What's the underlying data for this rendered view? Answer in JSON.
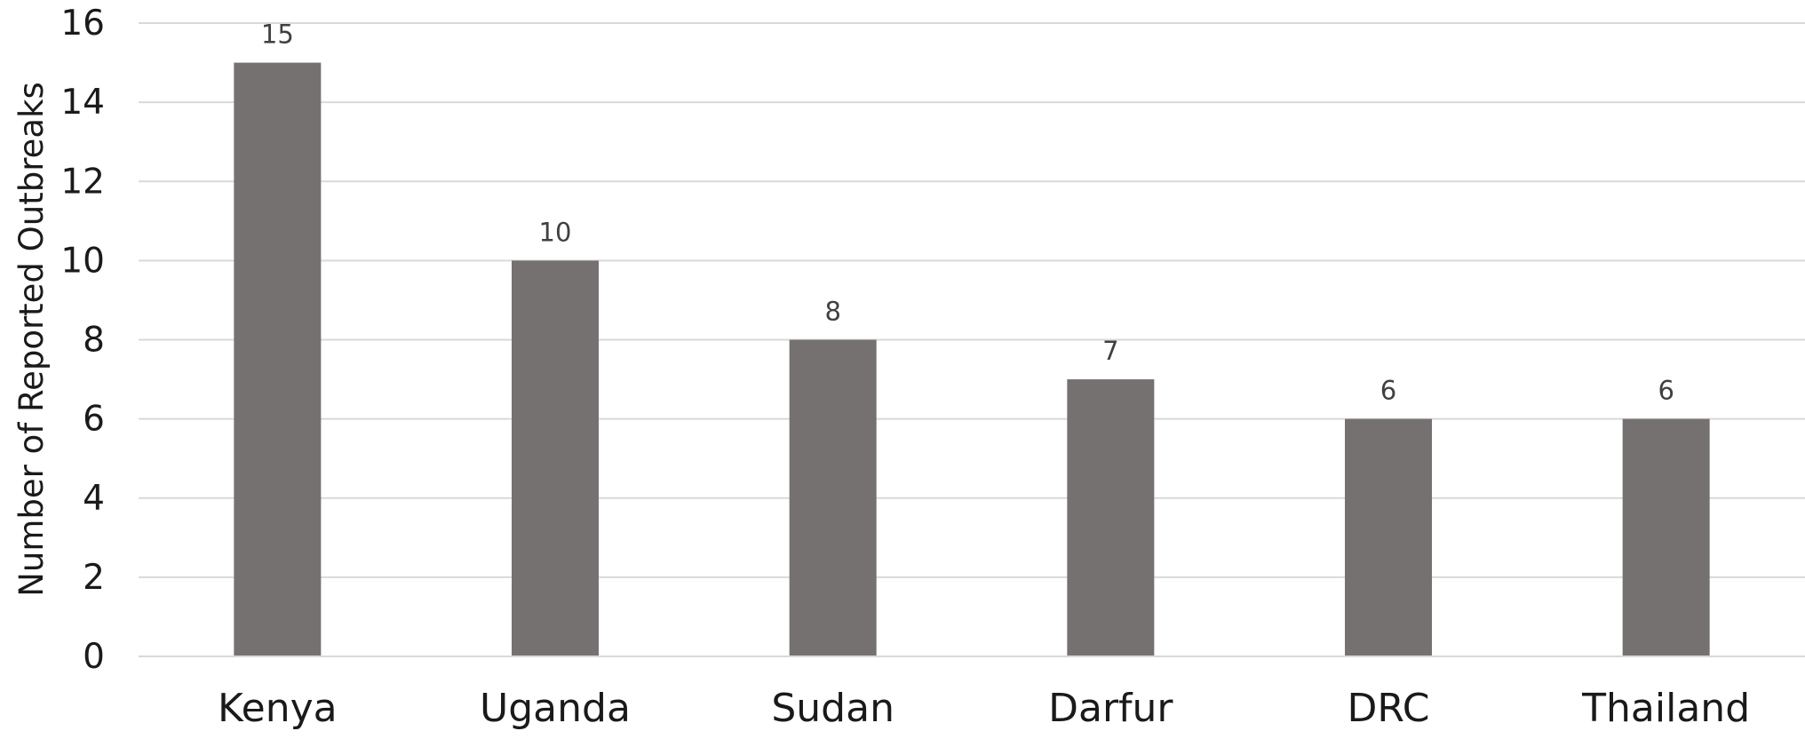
{
  "chart_data": {
    "type": "bar",
    "title": "",
    "xlabel": "",
    "ylabel": "Number of Reported Outbreaks",
    "categories": [
      "Kenya",
      "Uganda",
      "Sudan",
      "Darfur",
      "DRC",
      "Thailand"
    ],
    "values": [
      15,
      10,
      8,
      7,
      6,
      6
    ],
    "data_labels": [
      "15",
      "10",
      "8",
      "7",
      "6",
      "6"
    ],
    "ylim": [
      0,
      16
    ],
    "yticks": [
      0,
      2,
      4,
      6,
      8,
      10,
      12,
      14,
      16
    ],
    "ytick_labels": [
      "0",
      "2",
      "4",
      "6",
      "8",
      "10",
      "12",
      "14",
      "16"
    ],
    "grid": true,
    "legend": "none",
    "colors": {
      "bar": "#757170",
      "grid": "#d9d9d9",
      "axis": "#d9d9d9"
    }
  }
}
